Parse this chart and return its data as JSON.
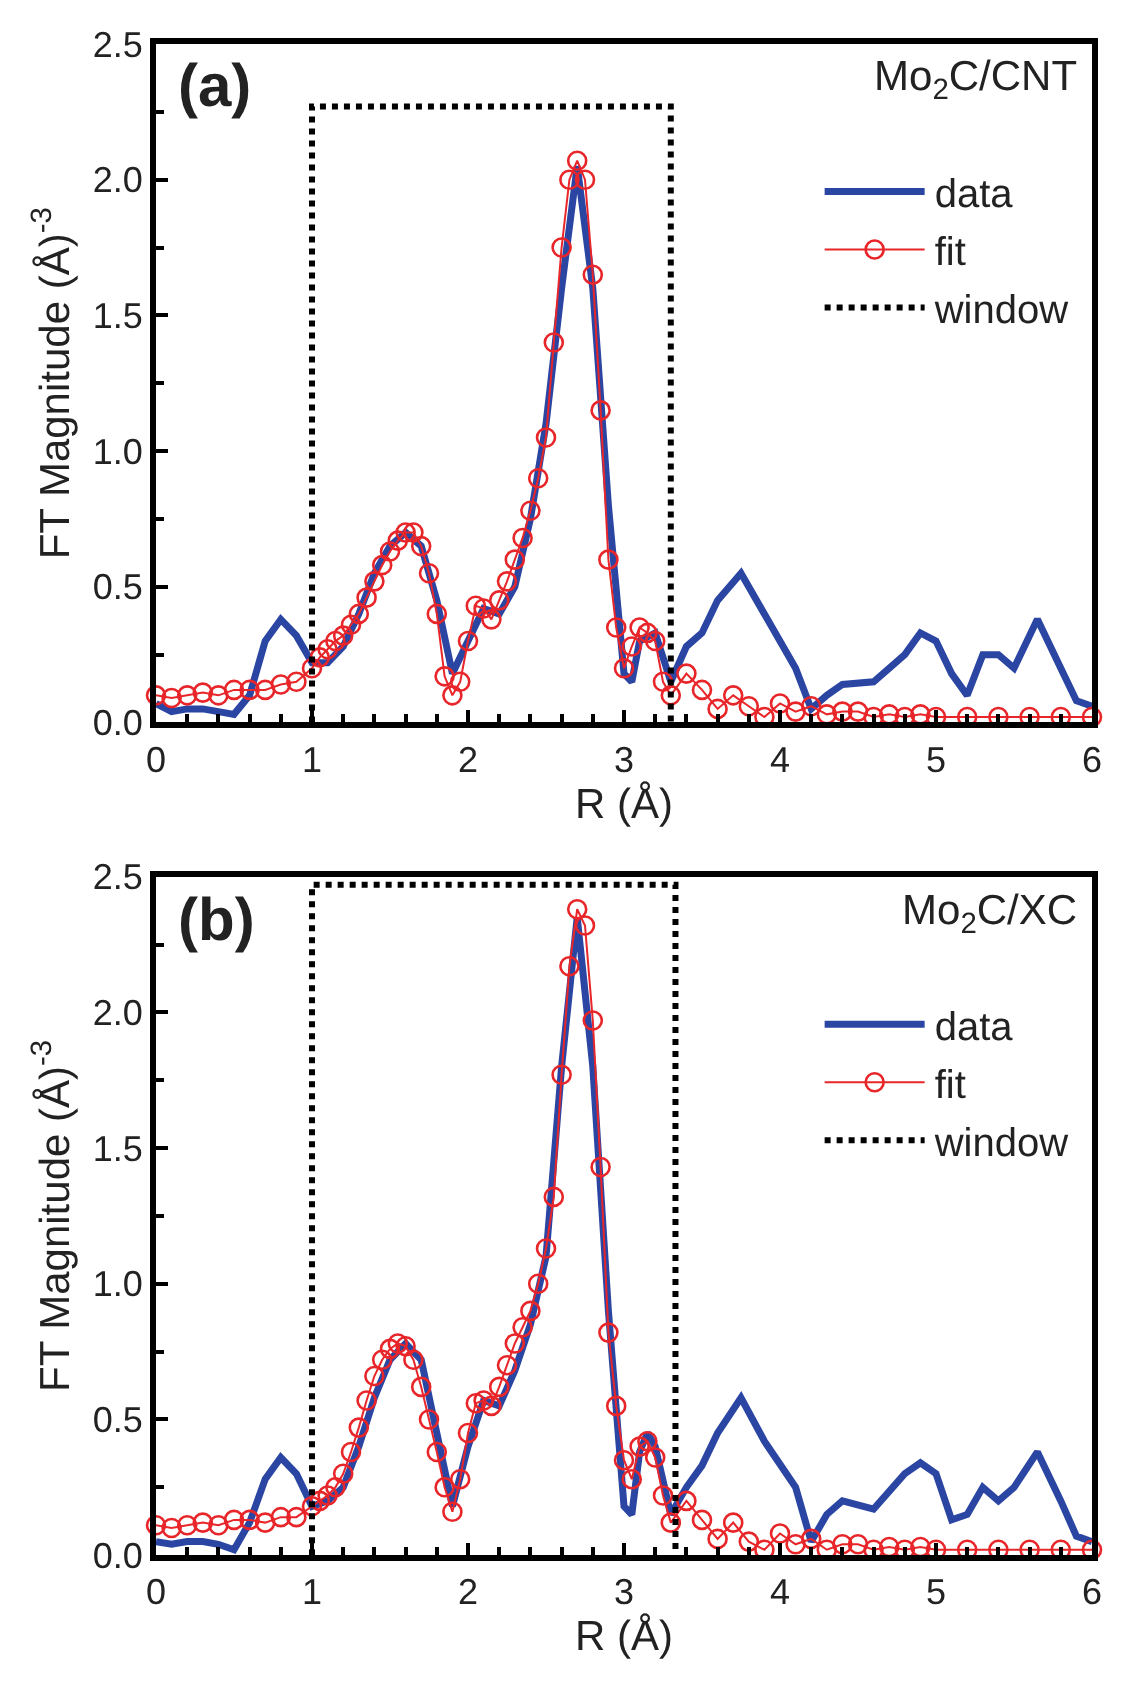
{
  "chart_data": [
    {
      "type": "line",
      "annotations": [
        "(a)",
        "Mo$_{2}$C/CNT"
      ],
      "xlabel": "R (Å)",
      "ylabel": "FT Magnitude (Å)$^{-3}$",
      "xlim": [
        0,
        6
      ],
      "ylim": [
        0,
        2.5
      ],
      "xticks": [
        0,
        1,
        2,
        3,
        4,
        5,
        6
      ],
      "yticks": [
        {
          "value": 0,
          "label": "0.0"
        },
        {
          "value": 0.5,
          "label": "0.5"
        },
        {
          "value": 1,
          "label": "1.0"
        },
        {
          "value": 1.5,
          "label": "1.5"
        },
        {
          "value": 2,
          "label": "2.0"
        },
        {
          "value": 2.5,
          "label": "2.5"
        }
      ],
      "legend": "top right",
      "series": [
        {
          "name": "data",
          "color": "#2b45a3",
          "marker": "none",
          "line_style": "solid",
          "x": [
            0,
            0.1,
            0.2,
            0.3,
            0.4,
            0.5,
            0.6,
            0.7,
            0.8,
            0.9,
            1.0,
            1.1,
            1.2,
            1.3,
            1.4,
            1.5,
            1.6,
            1.7,
            1.8,
            1.9,
            2.0,
            2.1,
            2.2,
            2.3,
            2.4,
            2.5,
            2.6,
            2.7,
            2.8,
            2.9,
            3.0,
            3.05,
            3.1,
            3.2,
            3.3,
            3.4,
            3.5,
            3.6,
            3.75,
            3.9,
            4.1,
            4.2,
            4.3,
            4.4,
            4.6,
            4.8,
            4.9,
            5.0,
            5.1,
            5.2,
            5.3,
            5.4,
            5.5,
            5.65,
            5.8,
            5.9,
            6.0
          ],
          "values": [
            0.07,
            0.04,
            0.05,
            0.05,
            0.04,
            0.03,
            0.1,
            0.3,
            0.38,
            0.32,
            0.22,
            0.22,
            0.28,
            0.4,
            0.55,
            0.65,
            0.7,
            0.65,
            0.45,
            0.18,
            0.3,
            0.42,
            0.4,
            0.5,
            0.75,
            1.1,
            1.6,
            2.05,
            1.6,
            0.8,
            0.18,
            0.15,
            0.3,
            0.33,
            0.15,
            0.28,
            0.33,
            0.45,
            0.55,
            0.4,
            0.2,
            0.05,
            0.1,
            0.14,
            0.15,
            0.25,
            0.33,
            0.3,
            0.18,
            0.1,
            0.25,
            0.25,
            0.2,
            0.38,
            0.2,
            0.08,
            0.06
          ]
        },
        {
          "name": "fit",
          "color": "#e8262a",
          "marker": "circle",
          "line_style": "solid",
          "x": [
            0,
            0.1,
            0.2,
            0.3,
            0.4,
            0.5,
            0.6,
            0.7,
            0.8,
            0.9,
            1.0,
            1.05,
            1.1,
            1.15,
            1.2,
            1.25,
            1.3,
            1.35,
            1.4,
            1.45,
            1.5,
            1.55,
            1.6,
            1.65,
            1.7,
            1.75,
            1.8,
            1.85,
            1.9,
            1.95,
            2.0,
            2.05,
            2.1,
            2.15,
            2.2,
            2.25,
            2.3,
            2.35,
            2.4,
            2.45,
            2.5,
            2.55,
            2.6,
            2.65,
            2.7,
            2.75,
            2.8,
            2.85,
            2.9,
            2.95,
            3.0,
            3.05,
            3.1,
            3.15,
            3.2,
            3.25,
            3.3,
            3.4,
            3.5,
            3.6,
            3.7,
            3.8,
            3.9,
            4.0,
            4.1,
            4.2,
            4.3,
            4.4,
            4.5,
            4.6,
            4.7,
            4.8,
            4.9,
            5.0,
            5.2,
            5.4,
            5.6,
            5.8,
            6.0
          ],
          "values": [
            0.1,
            0.09,
            0.1,
            0.11,
            0.1,
            0.12,
            0.12,
            0.12,
            0.14,
            0.15,
            0.2,
            0.24,
            0.27,
            0.3,
            0.32,
            0.36,
            0.4,
            0.46,
            0.52,
            0.58,
            0.63,
            0.67,
            0.7,
            0.7,
            0.65,
            0.55,
            0.4,
            0.17,
            0.1,
            0.15,
            0.3,
            0.43,
            0.42,
            0.38,
            0.45,
            0.52,
            0.6,
            0.68,
            0.78,
            0.9,
            1.05,
            1.4,
            1.75,
            2.0,
            2.07,
            2.0,
            1.65,
            1.15,
            0.6,
            0.35,
            0.2,
            0.28,
            0.35,
            0.33,
            0.3,
            0.15,
            0.1,
            0.18,
            0.12,
            0.05,
            0.1,
            0.06,
            0.02,
            0.07,
            0.04,
            0.06,
            0.03,
            0.04,
            0.04,
            0.02,
            0.03,
            0.02,
            0.03,
            0.02,
            0.02,
            0.02,
            0.02,
            0.02,
            0.02
          ]
        },
        {
          "name": "window",
          "color": "#000000",
          "marker": "none",
          "line_style": "dotted",
          "x": [
            1,
            1,
            3.3,
            3.3
          ],
          "values": [
            0,
            2.27,
            2.27,
            0
          ]
        }
      ]
    },
    {
      "type": "line",
      "annotations": [
        "(b)",
        "Mo$_{2}$C/XC"
      ],
      "xlabel": "R (Å)",
      "ylabel": "FT Magnitude (Å)$^{-3}$",
      "xlim": [
        0,
        6
      ],
      "ylim": [
        0,
        2.5
      ],
      "xticks": [
        0,
        1,
        2,
        3,
        4,
        5,
        6
      ],
      "yticks": [
        {
          "value": 0,
          "label": "0.0"
        },
        {
          "value": 0.5,
          "label": "0.5"
        },
        {
          "value": 1,
          "label": "1.0"
        },
        {
          "value": 1.5,
          "label": "1.5"
        },
        {
          "value": 2,
          "label": "2.0"
        },
        {
          "value": 2.5,
          "label": "2.5"
        }
      ],
      "legend": "top right",
      "series": [
        {
          "name": "data",
          "color": "#2b45a3",
          "marker": "none",
          "line_style": "solid",
          "x": [
            0,
            0.1,
            0.2,
            0.3,
            0.4,
            0.5,
            0.6,
            0.7,
            0.8,
            0.9,
            1.0,
            1.1,
            1.2,
            1.3,
            1.4,
            1.5,
            1.6,
            1.7,
            1.8,
            1.9,
            2.0,
            2.1,
            2.2,
            2.3,
            2.4,
            2.5,
            2.6,
            2.7,
            2.8,
            2.9,
            3.0,
            3.05,
            3.1,
            3.15,
            3.2,
            3.3,
            3.4,
            3.5,
            3.6,
            3.75,
            3.9,
            4.1,
            4.2,
            4.3,
            4.4,
            4.6,
            4.8,
            4.9,
            5.0,
            5.1,
            5.2,
            5.3,
            5.4,
            5.5,
            5.65,
            5.8,
            5.9,
            6.0
          ],
          "values": [
            0.05,
            0.04,
            0.05,
            0.05,
            0.04,
            0.02,
            0.12,
            0.28,
            0.36,
            0.3,
            0.18,
            0.2,
            0.25,
            0.4,
            0.58,
            0.72,
            0.78,
            0.72,
            0.45,
            0.18,
            0.4,
            0.57,
            0.55,
            0.68,
            0.85,
            1.1,
            1.8,
            2.35,
            1.8,
            0.9,
            0.18,
            0.15,
            0.38,
            0.45,
            0.4,
            0.15,
            0.25,
            0.33,
            0.45,
            0.58,
            0.42,
            0.25,
            0.05,
            0.15,
            0.2,
            0.17,
            0.3,
            0.34,
            0.3,
            0.13,
            0.15,
            0.25,
            0.2,
            0.25,
            0.38,
            0.2,
            0.07,
            0.05
          ]
        },
        {
          "name": "fit",
          "color": "#e8262a",
          "marker": "circle",
          "line_style": "solid",
          "x": [
            0,
            0.1,
            0.2,
            0.3,
            0.4,
            0.5,
            0.6,
            0.7,
            0.8,
            0.9,
            1.0,
            1.05,
            1.1,
            1.15,
            1.2,
            1.25,
            1.3,
            1.35,
            1.4,
            1.45,
            1.5,
            1.55,
            1.6,
            1.65,
            1.7,
            1.75,
            1.8,
            1.85,
            1.9,
            1.95,
            2.0,
            2.05,
            2.1,
            2.15,
            2.2,
            2.25,
            2.3,
            2.35,
            2.4,
            2.45,
            2.5,
            2.55,
            2.6,
            2.65,
            2.7,
            2.75,
            2.8,
            2.85,
            2.9,
            2.95,
            3.0,
            3.05,
            3.1,
            3.15,
            3.2,
            3.25,
            3.3,
            3.4,
            3.5,
            3.6,
            3.7,
            3.8,
            3.9,
            4.0,
            4.1,
            4.2,
            4.3,
            4.4,
            4.5,
            4.6,
            4.7,
            4.8,
            4.9,
            5.0,
            5.2,
            5.4,
            5.6,
            5.8,
            6.0
          ],
          "values": [
            0.11,
            0.1,
            0.11,
            0.12,
            0.11,
            0.13,
            0.13,
            0.12,
            0.14,
            0.14,
            0.18,
            0.2,
            0.22,
            0.25,
            0.3,
            0.38,
            0.47,
            0.57,
            0.66,
            0.72,
            0.76,
            0.78,
            0.77,
            0.72,
            0.62,
            0.5,
            0.38,
            0.25,
            0.16,
            0.28,
            0.45,
            0.56,
            0.57,
            0.55,
            0.62,
            0.7,
            0.78,
            0.84,
            0.9,
            1.0,
            1.13,
            1.32,
            1.77,
            2.17,
            2.38,
            2.32,
            1.97,
            1.43,
            0.82,
            0.55,
            0.35,
            0.28,
            0.4,
            0.42,
            0.36,
            0.22,
            0.12,
            0.2,
            0.13,
            0.06,
            0.12,
            0.05,
            0.02,
            0.08,
            0.04,
            0.06,
            0.02,
            0.04,
            0.04,
            0.02,
            0.03,
            0.02,
            0.03,
            0.02,
            0.02,
            0.02,
            0.02,
            0.02,
            0.02
          ]
        },
        {
          "name": "window",
          "color": "#000000",
          "marker": "none",
          "line_style": "dotted",
          "x": [
            1,
            1,
            3.33,
            3.33
          ],
          "values": [
            0,
            2.47,
            2.47,
            0
          ]
        }
      ]
    }
  ]
}
